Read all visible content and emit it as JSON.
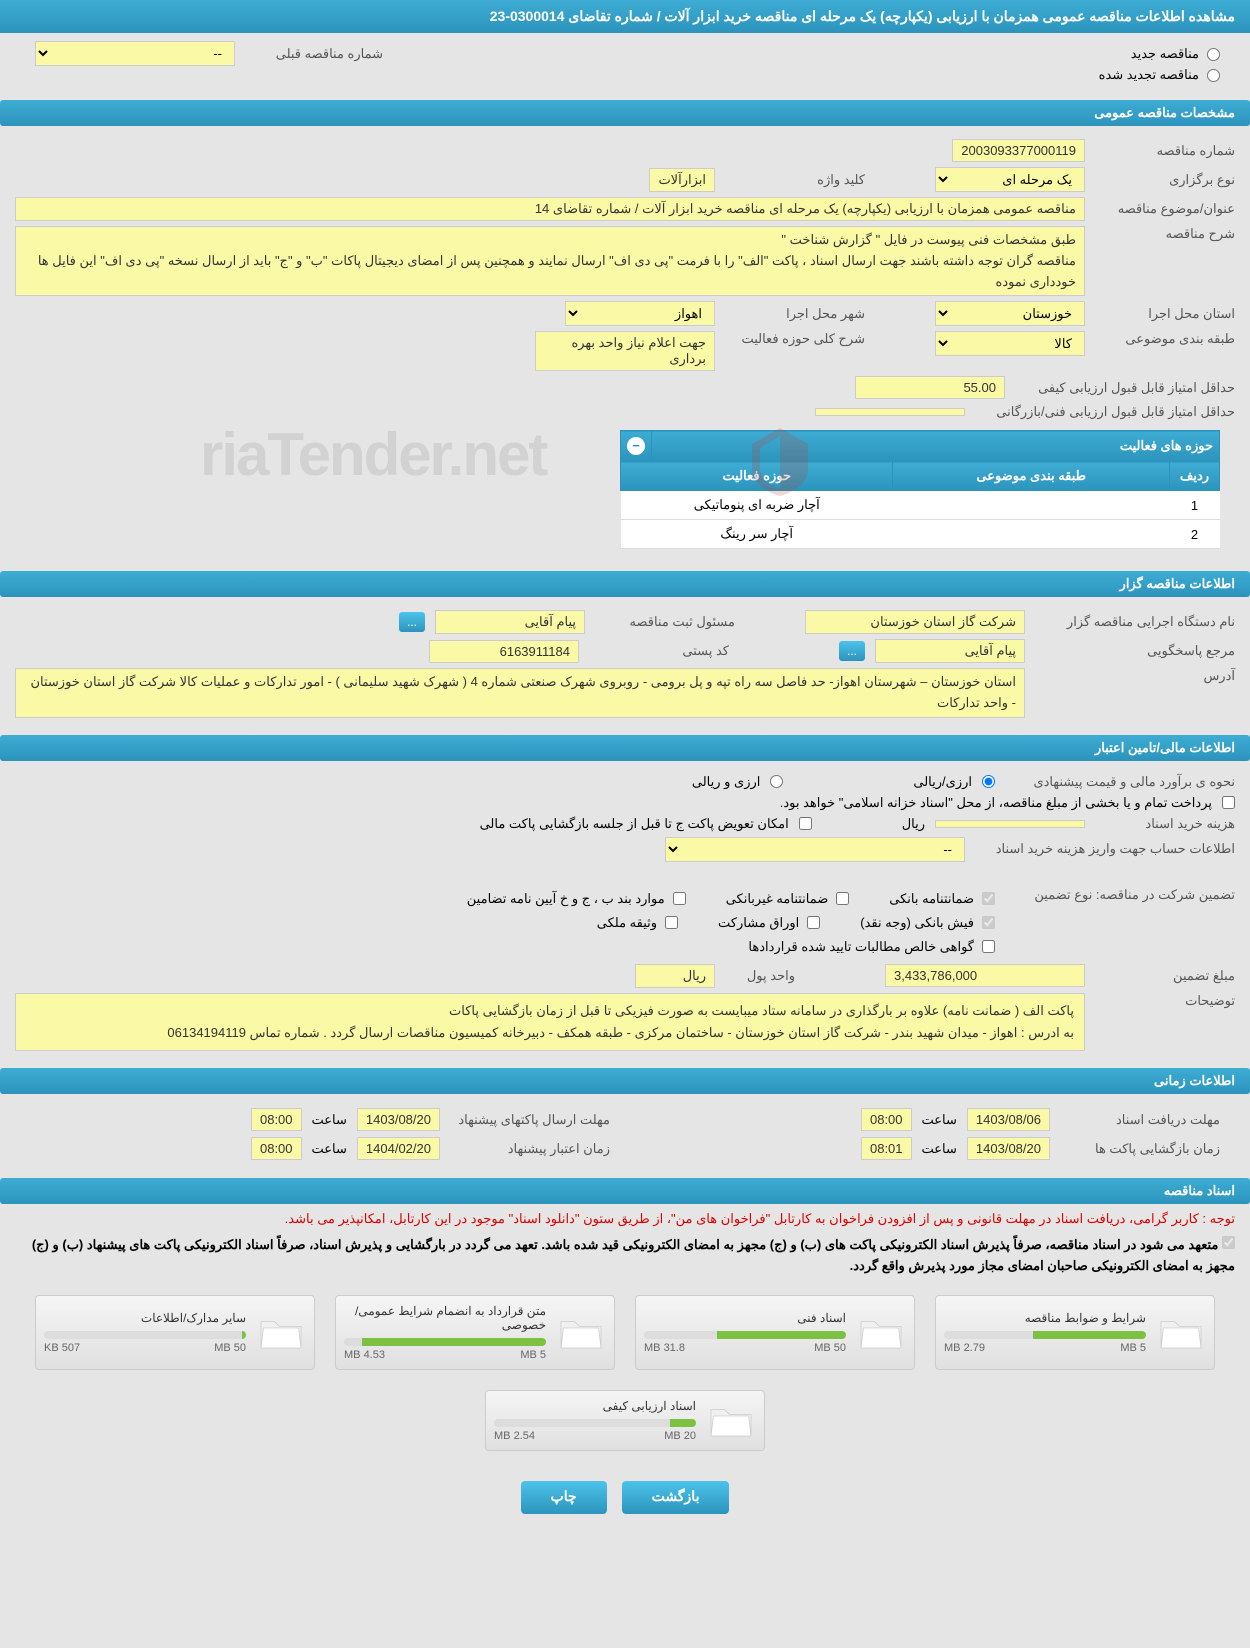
{
  "page_title": "مشاهده اطلاعات مناقصه عمومی همزمان با ارزیابی (یکپارچه) یک مرحله ای مناقصه خرید ابزار آلات / شماره تقاضای 0300014-23",
  "radio_options": {
    "new_tender": "مناقصه جدید",
    "renewed_tender": "مناقصه تجدید شده"
  },
  "prev_tender_label": "شماره مناقصه قبلی",
  "prev_tender_value": "--",
  "sections": {
    "general": "مشخصات مناقصه عمومی",
    "organizer": "اطلاعات مناقصه گزار",
    "financial": "اطلاعات مالی/تامین اعتبار",
    "timing": "اطلاعات زمانی",
    "documents": "اسناد مناقصه"
  },
  "general": {
    "tender_number_label": "شماره مناقصه",
    "tender_number": "2003093377000119",
    "holding_type_label": "نوع برگزاری",
    "holding_type": "یک مرحله ای",
    "keyword_label": "کلید واژه",
    "keyword": "ابزارآلات",
    "title_label": "عنوان/موضوع مناقصه",
    "title": "مناقصه عمومی همزمان با ارزیابی (یکپارچه) یک مرحله ای مناقصه خرید ابزار آلات / شماره تقاضای 14",
    "desc_label": "شرح مناقصه",
    "desc": "طبق مشخصات فنی پیوست در فایل  \" گزارش شناخت \"\nمناقصه گران توجه داشته باشند جهت ارسال اسناد ، پاکت \"الف\" را با فرمت  \"پی دی اف\"  ارسال نمایند و همچنین پس از امضای دیجیتال پاکات  \"ب\" و \"ج\" باید از ارسال نسخه \"پی دی اف\"  این فایل ها خودداری نموده",
    "province_label": "استان محل اجرا",
    "province": "خوزستان",
    "city_label": "شهر محل اجرا",
    "city": "اهواز",
    "category_label": "طبقه بندی موضوعی",
    "category": "کالا",
    "scope_label": "شرح کلی حوزه فعالیت",
    "scope": "جهت اعلام نیاز واحد بهره برداری",
    "min_score_label": "حداقل امتیاز قابل قبول ارزیابی کیفی",
    "min_score": "55.00",
    "min_tech_score_label": "حداقل امتیاز قابل قبول ارزیابی فنی/بازرگانی"
  },
  "activity_table": {
    "header": "حوزه های فعالیت",
    "col_row": "ردیف",
    "col_category": "طبقه بندی موضوعی",
    "col_activity": "حوزه فعالیت",
    "rows": [
      {
        "num": "1",
        "category": "",
        "activity": "آچار ضربه ای پنوماتیکی"
      },
      {
        "num": "2",
        "category": "",
        "activity": "آچار سر رینگ"
      }
    ]
  },
  "organizer": {
    "org_name_label": "نام دستگاه اجرایی مناقصه گزار",
    "org_name": "شرکت گاز استان خوزستان",
    "registrar_label": "مسئول ثبت مناقصه",
    "registrar": "پیام  آقایی",
    "responder_label": "مرجع پاسخگویی",
    "responder": "پیام آقایی",
    "postal_code_label": "کد پستی",
    "postal_code": "6163911184",
    "address_label": "آدرس",
    "address": "استان خوزستان – شهرستان اهواز- حد فاصل سه راه تپه  و  پل برومی - روبروی شهرک صنعتی شماره 4 ( شهرک شهید سلیمانی  ) - امور تدارکات و عملیات کالا شرکت گاز استان خوزستان - واحد تدارکات"
  },
  "financial": {
    "estimate_label": "نحوه ی برآورد مالی و قیمت پیشنهادی",
    "estimate_radio1": "ارزی/ریالی",
    "estimate_radio2": "ارزی و ریالی",
    "payment_note": "پرداخت تمام و یا بخشی از مبلغ مناقصه، از محل \"اسناد خزانه اسلامی\" خواهد بود.",
    "doc_cost_label": "هزینه خرید اسناد",
    "doc_cost_unit": "ریال",
    "account_info_label": "اطلاعات حساب جهت واریز هزینه خرید اسناد",
    "account_info_value": "--",
    "refund_label": "امکان تعویض پاکت ج تا قبل از جلسه بازگشایی پاکت مالی",
    "guarantee_type_label": "تضمین شرکت در مناقصه:   نوع تضمین",
    "chk_bank_guarantee": "ضمانتنامه بانکی",
    "chk_nonbank_guarantee": "ضمانتنامه غیربانکی",
    "chk_items_bcj": "موارد بند ب ، ج و خ آیین نامه تضامین",
    "chk_bank_receipt": "فیش بانکی (وجه نقد)",
    "chk_bonds": "اوراق مشارکت",
    "chk_property": "وثیقه ملکی",
    "chk_contracts": "گواهی خالص مطالبات تایید شده قراردادها",
    "guarantee_amount_label": "مبلغ تضمین",
    "guarantee_amount": "3,433,786,000",
    "currency_label": "واحد پول",
    "currency": "ریال",
    "notes_label": "توضیحات",
    "notes": "پاکت الف ( ضمانت نامه) علاوه بر بارگذاری در سامانه ستاد میبایست به صورت فیزیکی تا قبل از زمان بازگشایی پاکات\nبه ادرس : اهواز - میدان شهید بندر - شرکت گاز استان خوزستان - ساختمان مرکزی - طبقه همکف - دبیرخانه کمیسیون مناقصات ارسال گردد . شماره تماس  06134194119"
  },
  "timing": {
    "doc_receive_label": "مهلت دریافت اسناد",
    "doc_receive_date": "1403/08/06",
    "doc_receive_time": "08:00",
    "packet_send_label": "مهلت ارسال پاکتهای پیشنهاد",
    "packet_send_date": "1403/08/20",
    "packet_send_time": "08:00",
    "packet_open_label": "زمان بازگشایی پاکت ها",
    "packet_open_date": "1403/08/20",
    "packet_open_time": "08:01",
    "validity_label": "زمان اعتبار پیشنهاد",
    "validity_date": "1404/02/20",
    "validity_time": "08:00",
    "time_label": "ساعت"
  },
  "documents": {
    "red_note": "توجه : کاربر گرامی، دریافت اسناد در مهلت قانونی و پس از افزودن فراخوان به کارتابل \"فراخوان های من\"، از طریق ستون \"دانلود اسناد\" موجود در این کارتابل، امکانپذیر می باشد.",
    "black_note": "متعهد می شود در اسناد مناقصه، صرفاً پذیرش اسناد الکترونیکی پاکت های (ب) و (ج) مجهز به امضای الکترونیکی قید شده باشد. تعهد می گردد در بارگشایی و پذیرش اسناد، صرفاً اسناد الکترونیکی پاکت های پیشنهاد (ب) و (ج) مجهز به امضای الکترونیکی صاحبان امضای مجاز مورد پذیرش واقع گردد.",
    "files": [
      {
        "title": "شرایط و ضوابط مناقصه",
        "used": "2.79 MB",
        "total": "5 MB",
        "pct": 56
      },
      {
        "title": "اسناد فنی",
        "used": "31.8 MB",
        "total": "50 MB",
        "pct": 64
      },
      {
        "title": "متن قرارداد به انضمام شرایط عمومی/خصوصی",
        "used": "4.53 MB",
        "total": "5 MB",
        "pct": 91
      },
      {
        "title": "سایر مدارک/اطلاعات",
        "used": "507 KB",
        "total": "50 MB",
        "pct": 2
      },
      {
        "title": "اسناد ارزیابی کیفی",
        "used": "2.54 MB",
        "total": "20 MB",
        "pct": 13
      }
    ]
  },
  "buttons": {
    "back": "بازگشت",
    "print": "چاپ"
  },
  "watermark": "riaTender.net"
}
